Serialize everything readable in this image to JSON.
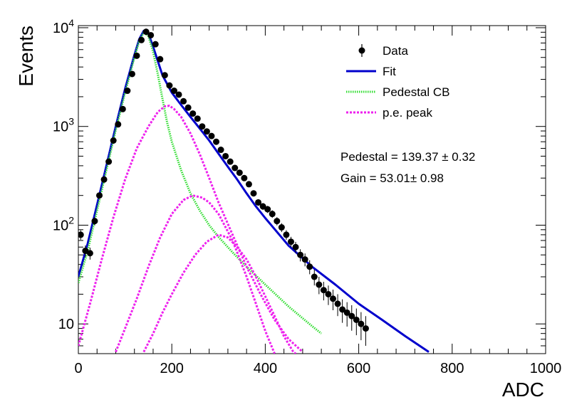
{
  "chart_data": {
    "type": "line",
    "title": "",
    "xlabel": "ADC",
    "ylabel": "Events",
    "xlim": [
      0,
      1000
    ],
    "ylim": [
      5,
      10500
    ],
    "log_y": true,
    "grid": false,
    "legend_position": "top-right",
    "x_ticks": [
      0,
      200,
      400,
      600,
      800,
      1000
    ],
    "x_tick_labels": [
      "0",
      "200",
      "400",
      "600",
      "800",
      "1000"
    ],
    "y_ticks": [
      {
        "value": 10,
        "base": "10",
        "exp": ""
      },
      {
        "value": 100,
        "base": "10",
        "exp": "2"
      },
      {
        "value": 1000,
        "base": "10",
        "exp": "3"
      },
      {
        "value": 10000,
        "base": "10",
        "exp": "4"
      }
    ],
    "legend": [
      {
        "label": "Data",
        "kind": "marker"
      },
      {
        "label": "Fit",
        "kind": "line",
        "color": "#0000cc"
      },
      {
        "label": "Pedestal CB",
        "kind": "dotted",
        "color": "#33dd33"
      },
      {
        "label": "p.e. peak",
        "kind": "dashed",
        "color": "#ee22ee"
      }
    ],
    "annotations": [
      "Pedestal = 139.37 ± 0.32",
      "Gain = 53.01± 0.98"
    ],
    "series": [
      {
        "name": "Data",
        "kind": "points",
        "color": "#000000",
        "x": [
          5,
          15,
          25,
          35,
          45,
          55,
          65,
          75,
          85,
          95,
          105,
          115,
          125,
          135,
          145,
          155,
          165,
          175,
          185,
          195,
          205,
          215,
          225,
          235,
          245,
          255,
          265,
          275,
          285,
          295,
          305,
          315,
          325,
          335,
          345,
          355,
          365,
          375,
          385,
          395,
          405,
          415,
          425,
          435,
          445,
          455,
          465,
          475,
          485,
          495,
          505,
          515,
          525,
          535,
          545,
          555,
          565,
          575,
          585,
          595,
          605,
          615
        ],
        "y": [
          80,
          55,
          52,
          110,
          200,
          290,
          440,
          720,
          1050,
          1500,
          2300,
          3400,
          5200,
          7500,
          9100,
          8400,
          6800,
          4800,
          3300,
          2600,
          2300,
          2100,
          1800,
          1550,
          1350,
          1200,
          1000,
          890,
          800,
          700,
          580,
          500,
          440,
          380,
          340,
          300,
          260,
          210,
          170,
          155,
          145,
          130,
          110,
          95,
          80,
          68,
          60,
          50,
          45,
          38,
          30,
          25,
          22,
          20,
          18,
          16,
          14,
          13,
          12,
          11,
          10,
          9
        ]
      },
      {
        "name": "Fit",
        "kind": "line",
        "color": "#0000cc",
        "x": [
          0,
          20,
          40,
          60,
          80,
          100,
          120,
          130,
          140,
          150,
          160,
          170,
          180,
          200,
          220,
          240,
          260,
          280,
          300,
          320,
          340,
          360,
          380,
          400,
          450,
          500,
          550,
          600,
          650,
          700,
          750
        ],
        "y": [
          30,
          65,
          160,
          400,
          1000,
          2400,
          5300,
          7600,
          9300,
          8700,
          6400,
          4600,
          3300,
          2200,
          1650,
          1250,
          950,
          720,
          530,
          390,
          290,
          210,
          155,
          118,
          62,
          38,
          25,
          16,
          11,
          7.5,
          5.2
        ]
      },
      {
        "name": "Pedestal CB",
        "kind": "dotted",
        "color": "#33dd33",
        "x": [
          0,
          20,
          40,
          60,
          80,
          100,
          120,
          130,
          140,
          150,
          160,
          170,
          180,
          190,
          200,
          220,
          240,
          260,
          280,
          300,
          330,
          360,
          400,
          450,
          500,
          520
        ],
        "y": [
          26,
          55,
          140,
          360,
          920,
          2200,
          5000,
          7300,
          9000,
          8200,
          5700,
          3400,
          1900,
          1100,
          700,
          360,
          210,
          140,
          100,
          76,
          53,
          38,
          25,
          15,
          9.5,
          8
        ]
      },
      {
        "name": "p.e. peak 1",
        "kind": "dashed",
        "color": "#ee22ee",
        "x": [
          0,
          25,
          50,
          75,
          100,
          125,
          150,
          170,
          185,
          195,
          205,
          220,
          240,
          260,
          280,
          300,
          330,
          360,
          390,
          420,
          450,
          480
        ],
        "y": [
          6,
          16,
          45,
          120,
          290,
          600,
          1000,
          1400,
          1600,
          1620,
          1500,
          1250,
          850,
          520,
          300,
          170,
          80,
          38,
          20,
          11,
          7,
          5.2
        ]
      },
      {
        "name": "p.e. peak 2",
        "kind": "dashed",
        "color": "#ee22ee",
        "x": [
          80,
          100,
          125,
          150,
          175,
          200,
          225,
          245,
          265,
          280,
          300,
          330,
          360,
          380,
          400,
          420
        ],
        "y": [
          5.2,
          9,
          18,
          38,
          75,
          130,
          180,
          200,
          190,
          170,
          130,
          70,
          30,
          16,
          8.5,
          5
        ]
      },
      {
        "name": "p.e. peak 3",
        "kind": "dashed",
        "color": "#ee22ee",
        "x": [
          140,
          160,
          180,
          200,
          225,
          250,
          275,
          300,
          320,
          340,
          360,
          380,
          400,
          420,
          440,
          460,
          470
        ],
        "y": [
          5.2,
          8,
          13,
          20,
          33,
          50,
          68,
          80,
          75,
          60,
          45,
          30,
          19,
          12,
          7.5,
          5.2,
          4.8
        ]
      }
    ]
  }
}
